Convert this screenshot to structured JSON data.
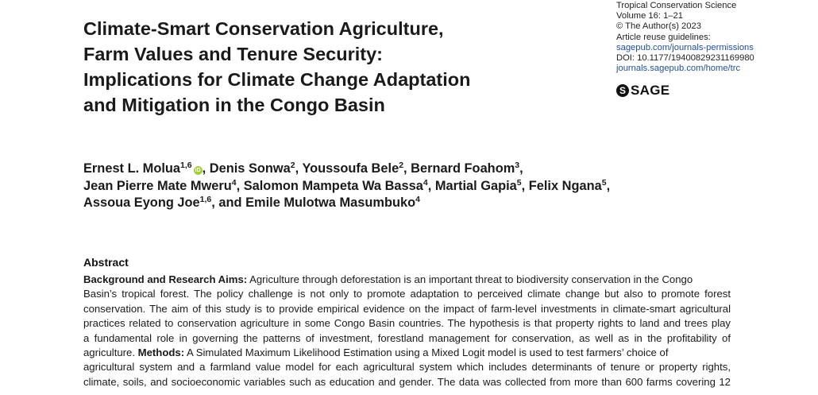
{
  "journal": {
    "name": "Tropical Conservation Science",
    "volume": "Volume 16: 1–21",
    "copyright": "© The Author(s) 2023",
    "reuse_label": "Article reuse guidelines:",
    "reuse_link": "sagepub.com/journals-permissions",
    "doi": "DOI: 10.1177/19400829231169980",
    "home_link": "journals.sagepub.com/home/trc",
    "publisher": "SAGE"
  },
  "title_lines": [
    "Climate-Smart Conservation Agriculture,",
    "Farm Values and Tenure Security:",
    "Implications for Climate Change Adaptation",
    "and Mitigation in the Congo Basin"
  ],
  "authors": {
    "a1": {
      "name": "Ernest L. Molua",
      "aff": "1,6"
    },
    "a2": {
      "name": "Denis Sonwa",
      "aff": "2"
    },
    "a3": {
      "name": "Youssoufa Bele",
      "aff": "2"
    },
    "a4": {
      "name": "Bernard Foahom",
      "aff": "3"
    },
    "a5": {
      "name": "Jean Pierre Mate Mweru",
      "aff": "4"
    },
    "a6": {
      "name": "Salomon Mampeta Wa Bassa",
      "aff": "4"
    },
    "a7": {
      "name": "Martial Gapia",
      "aff": "5"
    },
    "a8": {
      "name": "Felix Ngana",
      "aff": "5"
    },
    "a9": {
      "name": "Assoua Eyong Joe",
      "aff": "1,6"
    },
    "a10": {
      "name": "Emile Mulotwa Masumbuko",
      "aff": "4"
    },
    "orcid_glyph": "iD"
  },
  "abstract": {
    "heading": "Abstract",
    "bg_label": "Background and Research Aims:",
    "line1": "Agriculture through deforestation is an important threat to biodiversity conservation in the Congo",
    "line2": "Basin’s tropical forest. The policy challenge is not only to promote adaptation to perceived climate change but also to promote forest",
    "line3": "conservation. The aim of this study is to provide empirical evidence on the impact of farm-level investments in climate-smart agricultural",
    "line4": "practices related to conservation agriculture in some Congo Basin countries. The hypothesis is that property rights to land and trees play",
    "line5": "a fundamental role in governing the patterns of investment, forestland management for conservation, as well as in the profitability of",
    "line6a": "agriculture.",
    "methods_label": "Methods:",
    "line6b": "A Simulated Maximum Likelihood Estimation using a Mixed Logit model is used to test farmers’ choice of",
    "line7": "agricultural system and a farmland value model for each agricultural system which includes determinants of tenure or property rights,",
    "line8": "climate, soils, and socioeconomic variables such as education and gender. The data was collected from more than 600 farms covering 12"
  }
}
